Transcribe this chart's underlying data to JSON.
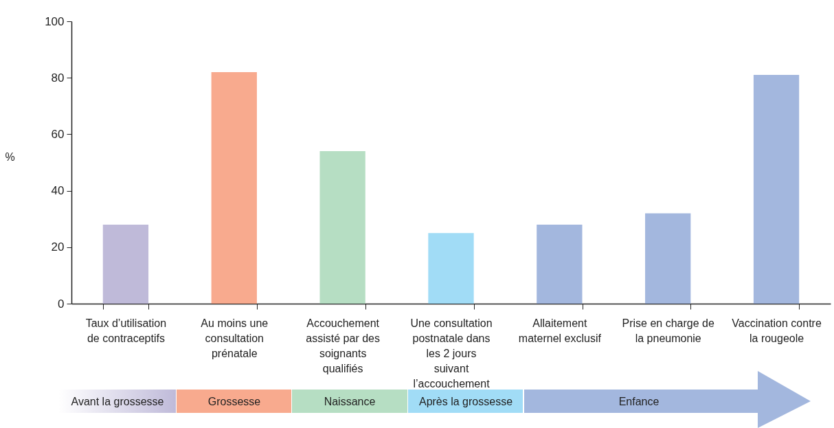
{
  "chart_data": {
    "type": "bar",
    "ylabel": "%",
    "categories": [
      "Taux d’utilisation de contraceptifs",
      "Au moins une consultation prénatale",
      "Accouchement assisté par des soignants qualifiés",
      "Une consultation postnatale dans les 2 jours suivant l’accouchement",
      "Allaitement maternel exclusif",
      "Prise en charge de la pneumonie",
      "Vaccination contre la rougeole"
    ],
    "values": [
      28,
      82,
      54,
      25,
      28,
      32,
      81
    ],
    "colors": [
      "#bfbad9",
      "#f8aa8e",
      "#b6dec3",
      "#a1dcf6",
      "#a3b7de",
      "#a3b7de",
      "#a3b7de"
    ],
    "ylim": [
      0,
      100
    ],
    "yticks": [
      0,
      20,
      40,
      60,
      80,
      100
    ],
    "grid": false,
    "legend": false,
    "annotations": [
      "Avant la grossesse",
      "Grossesse",
      "Naissance",
      "Après la grossesse",
      "Enfance"
    ]
  }
}
